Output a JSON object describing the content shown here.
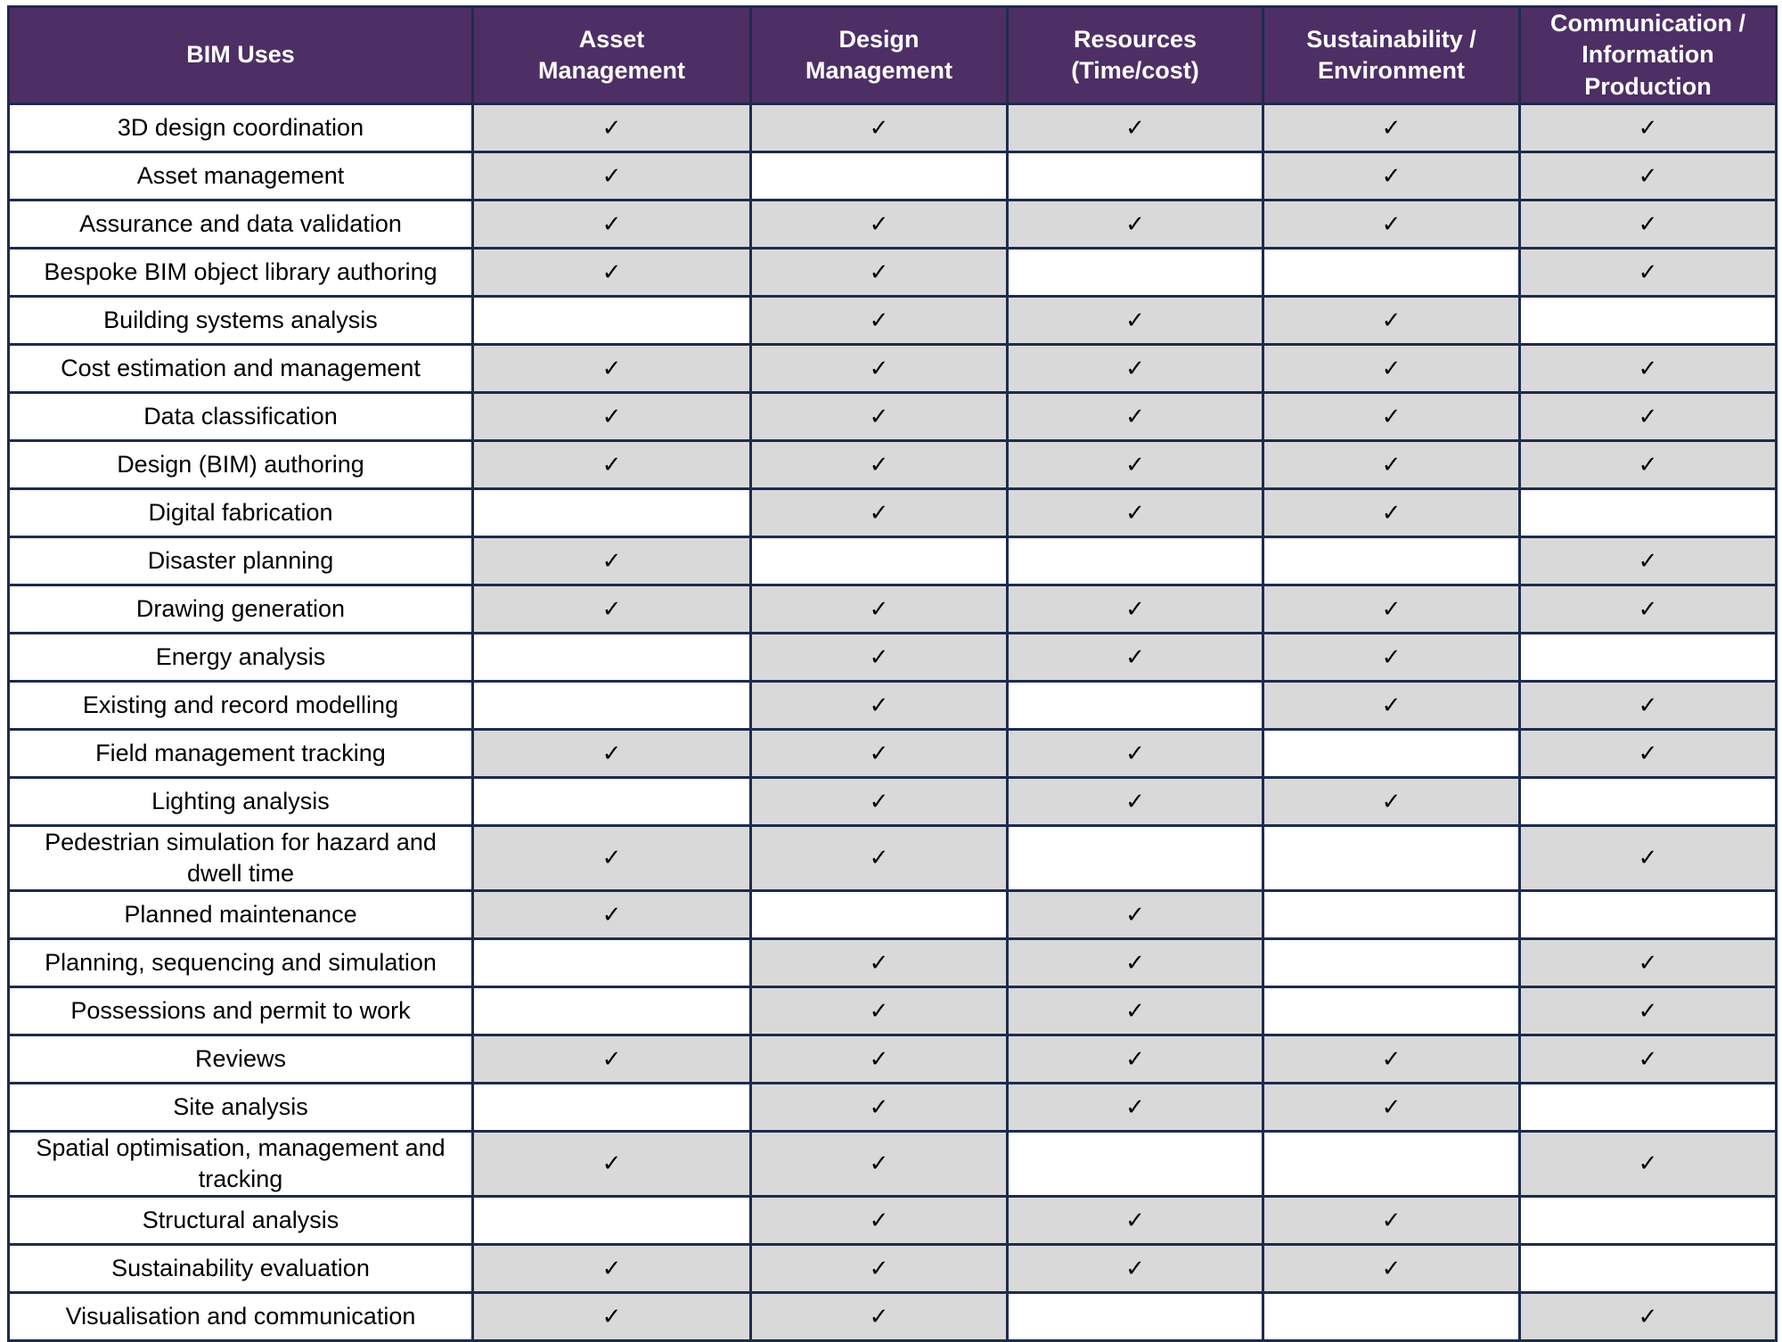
{
  "table": {
    "columns": [
      "BIM Uses",
      "Asset Management",
      "Design Management",
      "Resources (Time/cost)",
      "Sustainability / Environment",
      "Communication / Information Production"
    ],
    "rows": [
      {
        "label": "3D design coordination",
        "cells": [
          "✓",
          "✓",
          "✓",
          "✓",
          "✓"
        ]
      },
      {
        "label": "Asset management",
        "cells": [
          "✓",
          null,
          null,
          "✓",
          "✓"
        ]
      },
      {
        "label": "Assurance and data validation",
        "cells": [
          "✓",
          "✓",
          "✓",
          "✓",
          "✓"
        ]
      },
      {
        "label": "Bespoke BIM object library authoring",
        "cells": [
          "✓",
          "✓",
          null,
          null,
          "✓"
        ]
      },
      {
        "label": "Building systems analysis",
        "cells": [
          null,
          "✓",
          "✓",
          "✓",
          null
        ]
      },
      {
        "label": "Cost estimation and management",
        "cells": [
          "✓",
          "✓",
          "✓",
          "✓",
          "✓"
        ]
      },
      {
        "label": "Data classification",
        "cells": [
          "✓",
          "✓",
          "✓",
          "✓",
          "✓"
        ]
      },
      {
        "label": "Design (BIM) authoring",
        "cells": [
          "✓",
          "✓",
          "✓",
          "✓",
          "✓"
        ]
      },
      {
        "label": "Digital fabrication",
        "cells": [
          null,
          "✓",
          "✓",
          "✓",
          null
        ]
      },
      {
        "label": "Disaster planning",
        "cells": [
          "✓",
          null,
          null,
          null,
          "✓"
        ]
      },
      {
        "label": "Drawing generation",
        "cells": [
          "✓",
          "✓",
          "✓",
          "✓",
          "✓"
        ]
      },
      {
        "label": "Energy analysis",
        "cells": [
          null,
          "✓",
          "✓",
          "✓",
          null
        ]
      },
      {
        "label": "Existing and record modelling",
        "cells": [
          null,
          "✓",
          null,
          "✓",
          "✓"
        ]
      },
      {
        "label": "Field management tracking",
        "cells": [
          "✓",
          "✓",
          "✓",
          null,
          "✓"
        ]
      },
      {
        "label": "Lighting analysis",
        "cells": [
          null,
          "✓",
          "✓",
          "✓",
          null
        ]
      },
      {
        "label": "Pedestrian simulation for hazard and dwell time",
        "cells": [
          "✓",
          "✓",
          null,
          null,
          "✓"
        ]
      },
      {
        "label": "Planned maintenance",
        "cells": [
          "✓",
          null,
          "✓",
          null,
          null
        ]
      },
      {
        "label": "Planning, sequencing and simulation",
        "cells": [
          null,
          "✓",
          "✓",
          null,
          "✓"
        ]
      },
      {
        "label": "Possessions and permit to work",
        "cells": [
          null,
          "✓",
          "✓",
          null,
          "✓"
        ]
      },
      {
        "label": "Reviews",
        "cells": [
          "✓",
          "✓",
          "✓",
          "✓",
          "✓"
        ]
      },
      {
        "label": "Site analysis",
        "cells": [
          null,
          "✓",
          "✓",
          "✓",
          null
        ]
      },
      {
        "label": "Spatial optimisation, management and tracking",
        "cells": [
          "✓",
          "✓",
          null,
          null,
          "✓"
        ]
      },
      {
        "label": "Structural analysis",
        "cells": [
          null,
          "✓",
          "✓",
          "✓",
          null
        ]
      },
      {
        "label": "Sustainability evaluation",
        "cells": [
          "✓",
          "✓",
          "✓",
          "✓",
          null
        ]
      },
      {
        "label": "Visualisation and communication",
        "cells": [
          "✓",
          "✓",
          null,
          null,
          "✓"
        ]
      }
    ]
  }
}
